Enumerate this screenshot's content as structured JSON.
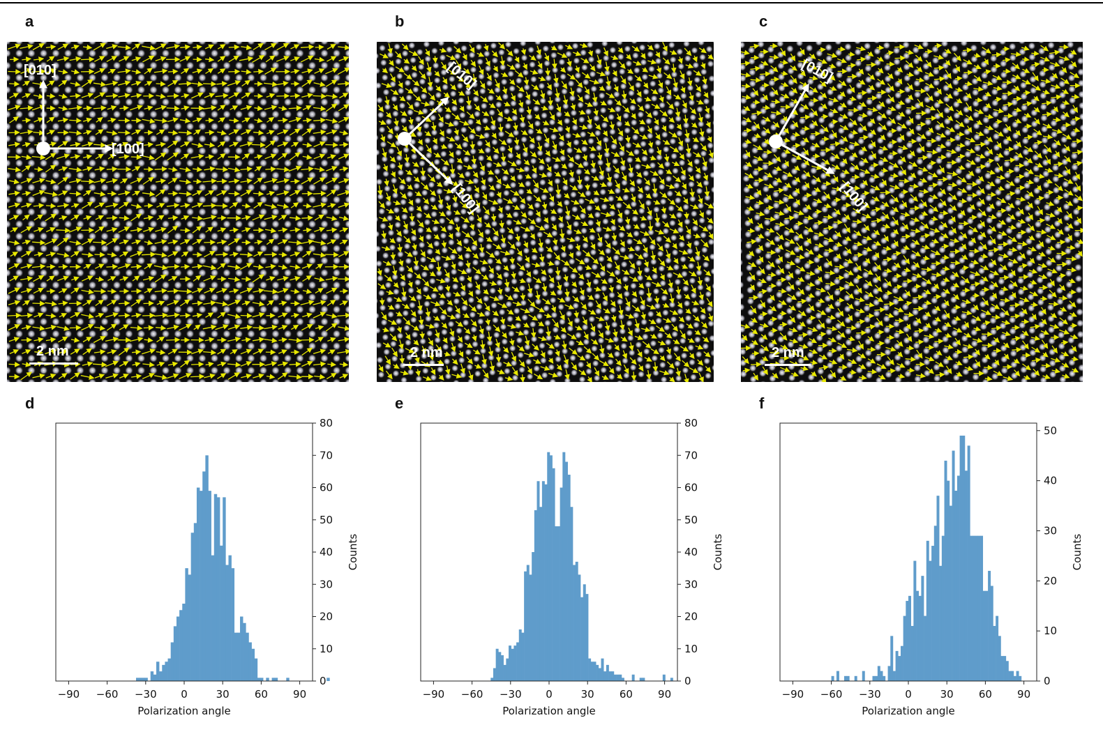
{
  "panels": {
    "a": {
      "label": "a",
      "axis_labels": {
        "y": "[010]",
        "x": "[100]"
      },
      "scale_bar": "2 nm",
      "rotation_deg": 0,
      "lattice": "square"
    },
    "b": {
      "label": "b",
      "axis_labels": {
        "y": "[010]",
        "x": "[100]"
      },
      "scale_bar": "2 nm",
      "rotation_deg": 40,
      "lattice": "square"
    },
    "c": {
      "label": "c",
      "axis_labels": {
        "y": "[010]",
        "x": "[100]"
      },
      "scale_bar": "2 nm",
      "rotation_deg": 28,
      "lattice": "hex"
    }
  },
  "colors": {
    "bar": "#5f9ccb",
    "arrow": "#e8e800",
    "atom": "#d8d8e0",
    "annotation": "#ffffff"
  },
  "chart_data": [
    {
      "panel": "d",
      "type": "bar",
      "title": "",
      "xlabel": "Polarization angle",
      "ylabel": "Counts",
      "xlim": [
        -100,
        100
      ],
      "ylim": [
        0,
        80
      ],
      "xticks": [
        -90,
        -60,
        -30,
        0,
        30,
        60,
        90
      ],
      "yticks": [
        0,
        10,
        20,
        30,
        40,
        50,
        60,
        70,
        80
      ],
      "y_axis_side": "right",
      "bin_width": 2.25,
      "bin_start": -37.5,
      "values": [
        1,
        1,
        1,
        1,
        0,
        3,
        2,
        6,
        3,
        5,
        6,
        7,
        12,
        17,
        20,
        22,
        24,
        35,
        33,
        46,
        49,
        60,
        59,
        65,
        70,
        59,
        39,
        58,
        57,
        42,
        57,
        36,
        39,
        35,
        15,
        15,
        20,
        18,
        15,
        12,
        10,
        7,
        1,
        1,
        0,
        1,
        0,
        1,
        1,
        0,
        0,
        0,
        1,
        0,
        0,
        0,
        0,
        0,
        0,
        0,
        0,
        0,
        0,
        0,
        0,
        0,
        1
      ]
    },
    {
      "panel": "e",
      "type": "bar",
      "title": "",
      "xlabel": "Polarization angle",
      "ylabel": "Counts",
      "xlim": [
        -100,
        100
      ],
      "ylim": [
        0,
        80
      ],
      "xticks": [
        -90,
        -60,
        -30,
        0,
        30,
        60,
        90
      ],
      "yticks": [
        0,
        10,
        20,
        30,
        40,
        50,
        60,
        70,
        80
      ],
      "y_axis_side": "right",
      "bin_width": 2.0,
      "bin_start": -45.5,
      "values": [
        1,
        4,
        10,
        9,
        8,
        5,
        7,
        11,
        10,
        11,
        12,
        16,
        15,
        34,
        36,
        33,
        40,
        53,
        62,
        54,
        62,
        61,
        71,
        70,
        66,
        48,
        48,
        60,
        71,
        68,
        64,
        54,
        36,
        37,
        33,
        26,
        30,
        27,
        7,
        6,
        6,
        5,
        4,
        7,
        3,
        5,
        3,
        3,
        2,
        2,
        2,
        1,
        0,
        0,
        0,
        2,
        0,
        0,
        1,
        1,
        0,
        0,
        0,
        0,
        0,
        0,
        0,
        2,
        0,
        0,
        1
      ]
    },
    {
      "panel": "f",
      "type": "bar",
      "title": "",
      "xlabel": "Polarization angle",
      "ylabel": "Counts",
      "xlim": [
        -100,
        100
      ],
      "ylim": [
        0,
        51.5
      ],
      "xticks": [
        -90,
        -60,
        -30,
        0,
        30,
        60,
        90
      ],
      "yticks": [
        0,
        10,
        20,
        30,
        40,
        50
      ],
      "y_axis_side": "right",
      "bin_width": 2.0,
      "bin_start": -60,
      "values": [
        1,
        0,
        2,
        0,
        0,
        1,
        1,
        0,
        0,
        1,
        0,
        0,
        2,
        0,
        0,
        0,
        1,
        1,
        3,
        2,
        1,
        0,
        3,
        9,
        2,
        6,
        5,
        7,
        13,
        16,
        17,
        11,
        24,
        18,
        17,
        21,
        13,
        28,
        24,
        27,
        31,
        37,
        23,
        29,
        44,
        40,
        35,
        46,
        38,
        41,
        49,
        49,
        42,
        47,
        29,
        29,
        29,
        29,
        29,
        18,
        18,
        22,
        19,
        11,
        13,
        9,
        5,
        5,
        4,
        2,
        2,
        1,
        2,
        1
      ]
    }
  ]
}
